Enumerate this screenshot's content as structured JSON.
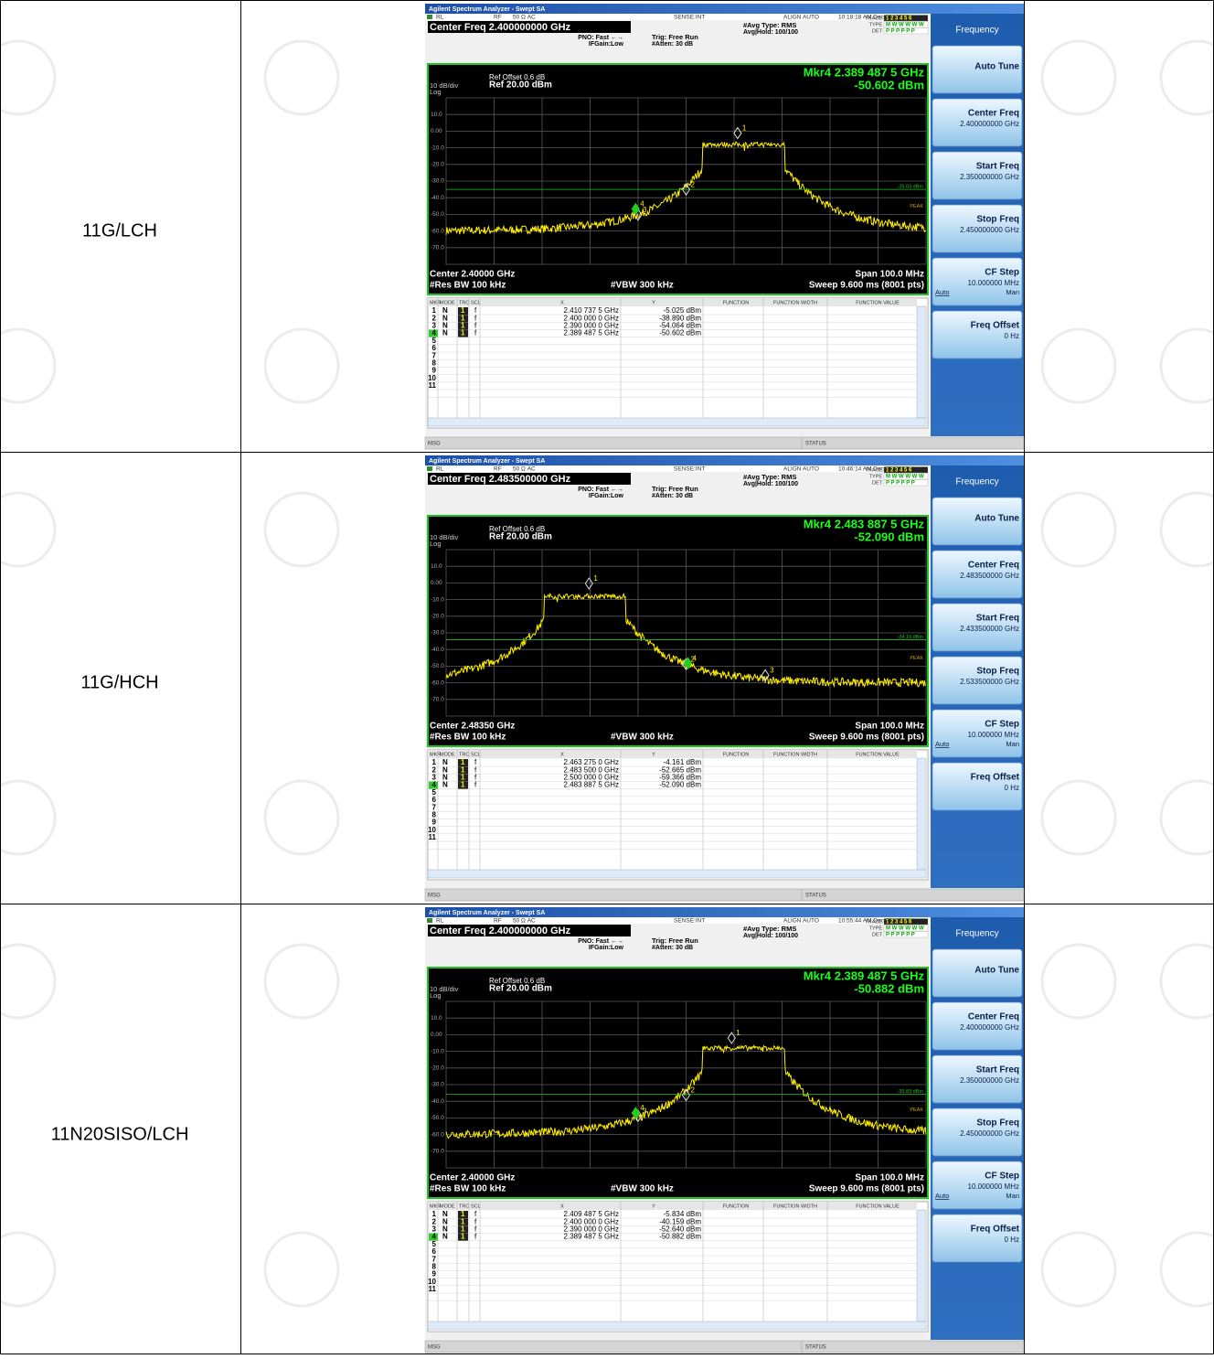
{
  "table": {
    "rows": [
      {
        "label": "11G/LCH",
        "analyzer": {
          "window_title": "Agilent Spectrum Analyzer - Swept SA",
          "status": {
            "rl": "RL",
            "rf": "RF",
            "impedance": "50 Ω  AC",
            "sense": "SENSE:INT",
            "align": "ALIGN AUTO",
            "timestamp": "10:18:18 AM Dec 28, 2018"
          },
          "center_freq_header": "Center Freq 2.400000000 GHz",
          "pno": "PNO: Fast ←→",
          "ifgain": "IFGain:Low",
          "trig": "Trig: Free Run",
          "atten": "#Atten: 30 dB",
          "avg_type": "#Avg Type: RMS",
          "avg_hold": "Avg|Hold: 100/100",
          "trace": {
            "labels": [
              "TRACE",
              "TYPE",
              "DET"
            ],
            "values": [
              "1 2 3 4 5 6",
              "M W W W W W",
              "P P P P P P"
            ]
          },
          "ref_offset": "Ref Offset 0.6 dB",
          "scale": "10 dB/div",
          "ref_level": "Ref 20.00 dBm",
          "log": "Log",
          "marker_readout": [
            "Mkr4 2.389 487 5 GHz",
            "-50.602 dBm"
          ],
          "y_axis": [
            "10.0",
            "0.00",
            "-10.0",
            "-20.0",
            "-30.0",
            "-40.0",
            "-50.0",
            "-60.0",
            "-70.0"
          ],
          "display_line": "-35.03 dBm",
          "peak": "PEAK",
          "footer": {
            "center": "Center 2.40000 GHz",
            "rbw": "#Res BW 100 kHz",
            "vbw": "#VBW 300 kHz",
            "span": "Span 100.0 MHz",
            "sweep": "Sweep  9.600 ms (8001 pts)"
          },
          "marker_table": {
            "header": [
              "MKR",
              "MODE",
              "TRC",
              "SCL",
              "X",
              "Y",
              "FUNCTION",
              "FUNCTION WIDTH",
              "FUNCTION VALUE"
            ],
            "rows": [
              [
                "1",
                "N",
                "1",
                "f",
                "2.410 737 5 GHz",
                "-5.025 dBm"
              ],
              [
                "2",
                "N",
                "1",
                "f",
                "2.400 000 0 GHz",
                "-38.890 dBm"
              ],
              [
                "3",
                "N",
                "1",
                "f",
                "2.390 000 0 GHz",
                "-54.064 dBm"
              ],
              [
                "4",
                "N",
                "1",
                "f",
                "2.389 487 5 GHz",
                "-50.602 dBm"
              ]
            ],
            "empty_rows": [
              "5",
              "6",
              "7",
              "8",
              "9",
              "10",
              "11"
            ]
          },
          "msg": "MSG",
          "status_bar": "STATUS",
          "softkeys": {
            "title": "Frequency",
            "items": [
              {
                "label": "Auto Tune"
              },
              {
                "label": "Center Freq",
                "value": "2.400000000 GHz"
              },
              {
                "label": "Start Freq",
                "value": "2.350000000 GHz"
              },
              {
                "label": "Stop Freq",
                "value": "2.450000000 GHz"
              },
              {
                "label": "CF Step",
                "value": "10.000000 MHz",
                "auto": "Auto",
                "man": "Man"
              },
              {
                "label": "Freq Offset",
                "value": "0 Hz"
              }
            ]
          }
        }
      },
      {
        "label": "11G/HCH",
        "analyzer": {
          "window_title": "Agilent Spectrum Analyzer - Swept SA",
          "status": {
            "rl": "RL",
            "rf": "RF",
            "impedance": "50 Ω  AC",
            "sense": "SENSE:INT",
            "align": "ALIGN AUTO",
            "timestamp": "10:46:14 AM Dec 28, 2018"
          },
          "center_freq_header": "Center Freq 2.483500000 GHz",
          "pno": "PNO: Fast ←→",
          "ifgain": "IFGain:Low",
          "trig": "Trig: Free Run",
          "atten": "#Atten: 30 dB",
          "avg_type": "#Avg Type: RMS",
          "avg_hold": "Avg|Hold: 100/100",
          "trace": {
            "labels": [
              "TRACE",
              "TYPE",
              "DET"
            ],
            "values": [
              "1 2 3 4 5 6",
              "M W W W W W",
              "P P P P P P"
            ]
          },
          "ref_offset": "Ref Offset 0.6 dB",
          "scale": "10 dB/div",
          "ref_level": "Ref 20.00 dBm",
          "log": "Log",
          "marker_readout": [
            "Mkr4 2.483 887 5 GHz",
            "-52.090 dBm"
          ],
          "y_axis": [
            "10.0",
            "0.00",
            "-10.0",
            "-20.0",
            "-30.0",
            "-40.0",
            "-50.0",
            "-60.0",
            "-70.0"
          ],
          "display_line": "-34.16 dBm",
          "peak": "PEAK",
          "footer": {
            "center": "Center 2.48350 GHz",
            "rbw": "#Res BW 100 kHz",
            "vbw": "#VBW 300 kHz",
            "span": "Span 100.0 MHz",
            "sweep": "Sweep  9.600 ms (8001 pts)"
          },
          "marker_table": {
            "header": [
              "MKR",
              "MODE",
              "TRC",
              "SCL",
              "X",
              "Y",
              "FUNCTION",
              "FUNCTION WIDTH",
              "FUNCTION VALUE"
            ],
            "rows": [
              [
                "1",
                "N",
                "1",
                "f",
                "2.463 275 0 GHz",
                "-4.161 dBm"
              ],
              [
                "2",
                "N",
                "1",
                "f",
                "2.483 500 0 GHz",
                "-52.665 dBm"
              ],
              [
                "3",
                "N",
                "1",
                "f",
                "2.500 000 0 GHz",
                "-59.366 dBm"
              ],
              [
                "4",
                "N",
                "1",
                "f",
                "2.483 887 5 GHz",
                "-52.090 dBm"
              ]
            ],
            "empty_rows": [
              "5",
              "6",
              "7",
              "8",
              "9",
              "10",
              "11"
            ]
          },
          "msg": "MSG",
          "status_bar": "STATUS",
          "softkeys": {
            "title": "Frequency",
            "items": [
              {
                "label": "Auto Tune"
              },
              {
                "label": "Center Freq",
                "value": "2.483500000 GHz"
              },
              {
                "label": "Start Freq",
                "value": "2.433500000 GHz"
              },
              {
                "label": "Stop Freq",
                "value": "2.533500000 GHz"
              },
              {
                "label": "CF Step",
                "value": "10.000000 MHz",
                "auto": "Auto",
                "man": "Man"
              },
              {
                "label": "Freq Offset",
                "value": "0 Hz"
              }
            ]
          }
        }
      },
      {
        "label": "11N20SISO/LCH",
        "analyzer": {
          "window_title": "Agilent Spectrum Analyzer - Swept SA",
          "status": {
            "rl": "RL",
            "rf": "RF",
            "impedance": "50 Ω  AC",
            "sense": "SENSE:INT",
            "align": "ALIGN AUTO",
            "timestamp": "10:55:44 AM Dec 28, 2018"
          },
          "center_freq_header": "Center Freq 2.400000000 GHz",
          "pno": "PNO: Fast ←→",
          "ifgain": "IFGain:Low",
          "trig": "Trig: Free Run",
          "atten": "#Atten: 30 dB",
          "avg_type": "#Avg Type: RMS",
          "avg_hold": "Avg|Hold: 100/100",
          "trace": {
            "labels": [
              "TRACE",
              "TYPE",
              "DET"
            ],
            "values": [
              "1 2 3 4 5 6",
              "M W W W W W",
              "P P P P P P"
            ]
          },
          "ref_offset": "Ref Offset 0.6 dB",
          "scale": "10 dB/div",
          "ref_level": "Ref 20.00 dBm",
          "log": "Log",
          "marker_readout": [
            "Mkr4 2.389 487 5 GHz",
            "-50.882 dBm"
          ],
          "y_axis": [
            "10.0",
            "0.00",
            "-10.0",
            "-20.0",
            "-30.0",
            "-40.0",
            "-50.0",
            "-60.0",
            "-70.0"
          ],
          "display_line": "-35.83 dBm",
          "peak": "PEAK",
          "footer": {
            "center": "Center 2.40000 GHz",
            "rbw": "#Res BW 100 kHz",
            "vbw": "#VBW 300 kHz",
            "span": "Span 100.0 MHz",
            "sweep": "Sweep  9.600 ms (8001 pts)"
          },
          "marker_table": {
            "header": [
              "MKR",
              "MODE",
              "TRC",
              "SCL",
              "X",
              "Y",
              "FUNCTION",
              "FUNCTION WIDTH",
              "FUNCTION VALUE"
            ],
            "rows": [
              [
                "1",
                "N",
                "1",
                "f",
                "2.409 487 5 GHz",
                "-5.834 dBm"
              ],
              [
                "2",
                "N",
                "1",
                "f",
                "2.400 000 0 GHz",
                "-40.159 dBm"
              ],
              [
                "3",
                "N",
                "1",
                "f",
                "2.390 000 0 GHz",
                "-52.640 dBm"
              ],
              [
                "4",
                "N",
                "1",
                "f",
                "2.389 487 5 GHz",
                "-50.882 dBm"
              ]
            ],
            "empty_rows": [
              "5",
              "6",
              "7",
              "8",
              "9",
              "10",
              "11"
            ]
          },
          "msg": "MSG",
          "status_bar": "STATUS",
          "softkeys": {
            "title": "Frequency",
            "items": [
              {
                "label": "Auto Tune"
              },
              {
                "label": "Center Freq",
                "value": "2.400000000 GHz"
              },
              {
                "label": "Start Freq",
                "value": "2.350000000 GHz"
              },
              {
                "label": "Stop Freq",
                "value": "2.450000000 GHz"
              },
              {
                "label": "CF Step",
                "value": "10.000000 MHz",
                "auto": "Auto",
                "man": "Man"
              },
              {
                "label": "Freq Offset",
                "value": "0 Hz"
              }
            ]
          }
        }
      }
    ]
  }
}
